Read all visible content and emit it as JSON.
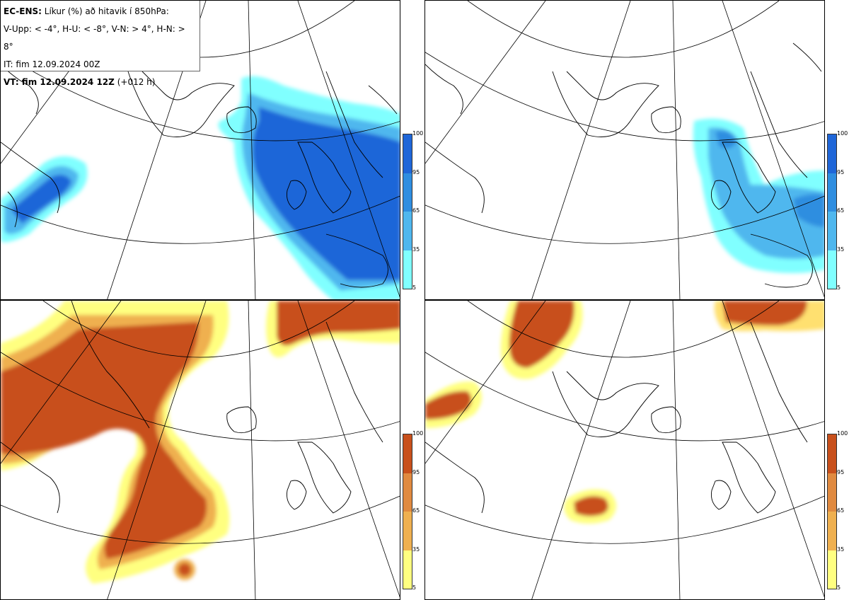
{
  "header": {
    "model": "EC-ENS:",
    "title": "Líkur (%) að hitavik í 850hPa:",
    "thresholds": "V-Upp: < -4°, H-U: < -8°, V-N: > 4°, H-N: > 8°",
    "init_time": "IT: fim 12.09.2024 00Z",
    "valid_prefix": "VT: fim 12.09.2024 12Z",
    "valid_suffix": "(+012 h)"
  },
  "colorbar_ticks": [
    "100",
    "95",
    "65",
    "35",
    "5"
  ],
  "colors": {
    "blue_scale": [
      "#80ffff",
      "#3fdcf0",
      "#4fb7ee",
      "#2f8ee0",
      "#1f66d8"
    ],
    "orange_scale": [
      "#ffff80",
      "#ffe070",
      "#efb050",
      "#e08a40",
      "#c8501c"
    ],
    "grid_line": "#000000",
    "coast_line": "#000000"
  },
  "panels": [
    {
      "id": "V-Upp",
      "palette": "blue"
    },
    {
      "id": "H-U",
      "palette": "blue"
    },
    {
      "id": "V-N",
      "palette": "orange"
    },
    {
      "id": "H-N",
      "palette": "orange"
    }
  ]
}
